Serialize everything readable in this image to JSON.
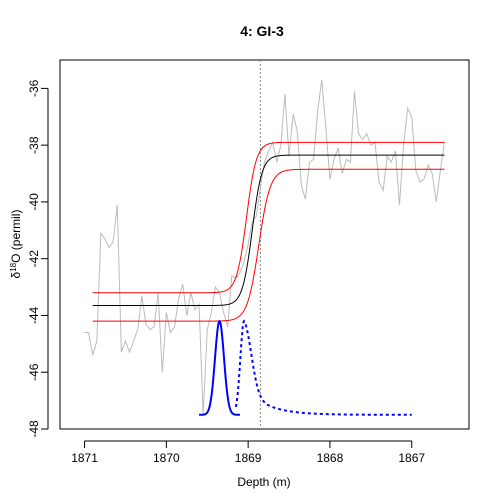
{
  "chart_data": {
    "type": "line",
    "title": "4: GI-3",
    "xlabel": "Depth (m)",
    "ylabel_prefix": "δ",
    "ylabel_sup": "18",
    "ylabel_suffix": "O (permil)",
    "xlim": [
      1871.3,
      1866.3
    ],
    "ylim": [
      -48.0,
      -35.0
    ],
    "x_ticks": [
      1871,
      1870,
      1869,
      1868,
      1867
    ],
    "y_ticks": [
      -48,
      -46,
      -44,
      -42,
      -40,
      -38,
      -36
    ],
    "grid": false,
    "legend": "none",
    "vline": {
      "x": 1868.85,
      "style": "dotted",
      "color": "#888888"
    },
    "series": [
      {
        "kind": "observations",
        "color": "#bbbbbb",
        "points": [
          [
            1871.0,
            -44.6
          ],
          [
            1870.95,
            -44.6
          ],
          [
            1870.9,
            -45.4
          ],
          [
            1870.85,
            -44.9
          ],
          [
            1870.8,
            -41.1
          ],
          [
            1870.75,
            -41.3
          ],
          [
            1870.7,
            -41.6
          ],
          [
            1870.65,
            -41.4
          ],
          [
            1870.6,
            -40.1
          ],
          [
            1870.55,
            -45.3
          ],
          [
            1870.5,
            -44.9
          ],
          [
            1870.45,
            -45.3
          ],
          [
            1870.4,
            -44.9
          ],
          [
            1870.35,
            -44.5
          ],
          [
            1870.3,
            -43.3
          ],
          [
            1870.25,
            -44.3
          ],
          [
            1870.2,
            -44.5
          ],
          [
            1870.15,
            -44.4
          ],
          [
            1870.1,
            -43.2
          ],
          [
            1870.05,
            -46.0
          ],
          [
            1870.0,
            -43.9
          ],
          [
            1869.95,
            -44.6
          ],
          [
            1869.9,
            -44.4
          ],
          [
            1869.85,
            -43.4
          ],
          [
            1869.8,
            -42.9
          ],
          [
            1869.75,
            -44.0
          ],
          [
            1869.7,
            -43.2
          ],
          [
            1869.65,
            -43.8
          ],
          [
            1869.6,
            -43.6
          ],
          [
            1869.55,
            -47.5
          ],
          [
            1869.5,
            -44.5
          ],
          [
            1869.45,
            -43.9
          ],
          [
            1869.4,
            -43.0
          ],
          [
            1869.35,
            -43.2
          ],
          [
            1869.3,
            -43.9
          ],
          [
            1869.25,
            -44.4
          ],
          [
            1869.2,
            -42.6
          ],
          [
            1869.15,
            -42.7
          ],
          [
            1869.1,
            -42.5
          ],
          [
            1869.05,
            -42.1
          ],
          [
            1869.0,
            -41.5
          ],
          [
            1868.95,
            -40.7
          ],
          [
            1868.9,
            -40.5
          ],
          [
            1868.85,
            -39.5
          ],
          [
            1868.8,
            -38.6
          ],
          [
            1868.75,
            -38.2
          ],
          [
            1868.7,
            -37.9
          ],
          [
            1868.65,
            -38.6
          ],
          [
            1868.6,
            -38.0
          ],
          [
            1868.55,
            -36.2
          ],
          [
            1868.5,
            -38.4
          ],
          [
            1868.45,
            -36.9
          ],
          [
            1868.4,
            -37.5
          ],
          [
            1868.35,
            -39.4
          ],
          [
            1868.3,
            -39.9
          ],
          [
            1868.25,
            -38.6
          ],
          [
            1868.2,
            -38.5
          ],
          [
            1868.15,
            -36.8
          ],
          [
            1868.1,
            -35.7
          ],
          [
            1868.05,
            -37.4
          ],
          [
            1868.0,
            -39.2
          ],
          [
            1867.95,
            -38.5
          ],
          [
            1867.9,
            -38.1
          ],
          [
            1867.85,
            -39.0
          ],
          [
            1867.8,
            -38.5
          ],
          [
            1867.75,
            -38.6
          ],
          [
            1867.7,
            -36.1
          ],
          [
            1867.65,
            -37.6
          ],
          [
            1867.6,
            -37.8
          ],
          [
            1867.55,
            -37.6
          ],
          [
            1867.5,
            -38.0
          ],
          [
            1867.45,
            -37.9
          ],
          [
            1867.4,
            -39.3
          ],
          [
            1867.35,
            -39.6
          ],
          [
            1867.3,
            -38.4
          ],
          [
            1867.25,
            -38.6
          ],
          [
            1867.2,
            -38.2
          ],
          [
            1867.15,
            -40.1
          ],
          [
            1867.1,
            -38.0
          ],
          [
            1867.05,
            -36.7
          ],
          [
            1867.0,
            -37.0
          ],
          [
            1866.95,
            -38.9
          ],
          [
            1866.9,
            -39.3
          ],
          [
            1866.85,
            -39.2
          ],
          [
            1866.8,
            -38.7
          ],
          [
            1866.75,
            -39.0
          ],
          [
            1866.7,
            -40.0
          ],
          [
            1866.65,
            -38.9
          ],
          [
            1866.6,
            -37.9
          ]
        ]
      },
      {
        "kind": "fit",
        "color": "#000000",
        "x_start": 1870.9,
        "x_end": 1866.6,
        "low": -43.65,
        "high": -38.35,
        "midpoint": 1868.95,
        "width": 0.06
      },
      {
        "kind": "fit-upper",
        "color": "#ff0000",
        "x_start": 1870.9,
        "x_end": 1866.6,
        "low": -43.2,
        "high": -37.9,
        "midpoint": 1869.02,
        "width": 0.06
      },
      {
        "kind": "fit-lower",
        "color": "#ff0000",
        "x_start": 1870.9,
        "x_end": 1866.6,
        "low": -44.2,
        "high": -38.85,
        "midpoint": 1868.87,
        "width": 0.07
      },
      {
        "kind": "density-solid",
        "color": "#0000ff",
        "x_start": 1869.6,
        "x_end": 1869.1,
        "baseline": -47.5,
        "peak_x": 1869.35,
        "peak_y": -44.2,
        "sigma": 0.055
      },
      {
        "kind": "density-dashed",
        "color": "#0000ff",
        "x_start": 1869.15,
        "x_end": 1867.0,
        "baseline": -47.5,
        "peak_x": 1869.05,
        "peak_y": -44.2,
        "rise": 0.045,
        "decay": 0.09
      }
    ]
  }
}
